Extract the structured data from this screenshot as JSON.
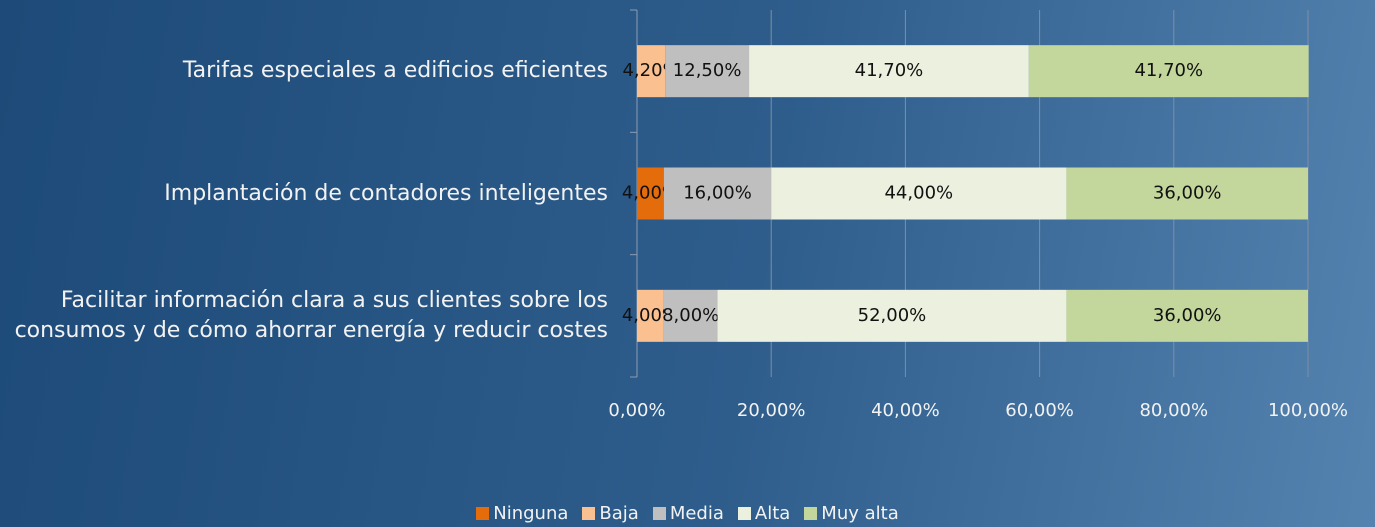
{
  "chart_data": {
    "type": "stacked-bar-horizontal",
    "categories": [
      "Tarifas especiales a edificios eficientes",
      "Implantación de contadores inteligentes",
      "Facilitar información clara a sus clientes sobre los consumos y de cómo ahorrar energía y reducir costes"
    ],
    "series": [
      {
        "name": "Ninguna",
        "color": "#e46c0a",
        "values": [
          0,
          4,
          0
        ],
        "value_labels": [
          null,
          "4,00%",
          null
        ]
      },
      {
        "name": "Baja",
        "color": "#fac090",
        "values": [
          4.2,
          0,
          4
        ],
        "value_labels": [
          "4,20%",
          null,
          "4,00%"
        ]
      },
      {
        "name": "Media",
        "color": "#bfbfbf",
        "values": [
          12.5,
          16,
          8
        ],
        "value_labels": [
          "12,50%",
          "16,00%",
          "8,00%"
        ]
      },
      {
        "name": "Alta",
        "color": "#ebf1de",
        "values": [
          41.7,
          44,
          52
        ],
        "value_labels": [
          "41,70%",
          "44,00%",
          "52,00%"
        ]
      },
      {
        "name": "Muy alta",
        "color": "#c3d69b",
        "values": [
          41.7,
          36,
          36
        ],
        "value_labels": [
          "41,70%",
          "36,00%",
          "36,00%"
        ]
      }
    ],
    "xlim": [
      0,
      100
    ],
    "xticks": [
      {
        "value": 0,
        "label": "0,00%"
      },
      {
        "value": 20,
        "label": "20,00%"
      },
      {
        "value": 40,
        "label": "40,00%"
      },
      {
        "value": 60,
        "label": "60,00%"
      },
      {
        "value": 80,
        "label": "80,00%"
      },
      {
        "value": 100,
        "label": "100,00%"
      }
    ],
    "grid": true,
    "legend": "bottom"
  }
}
